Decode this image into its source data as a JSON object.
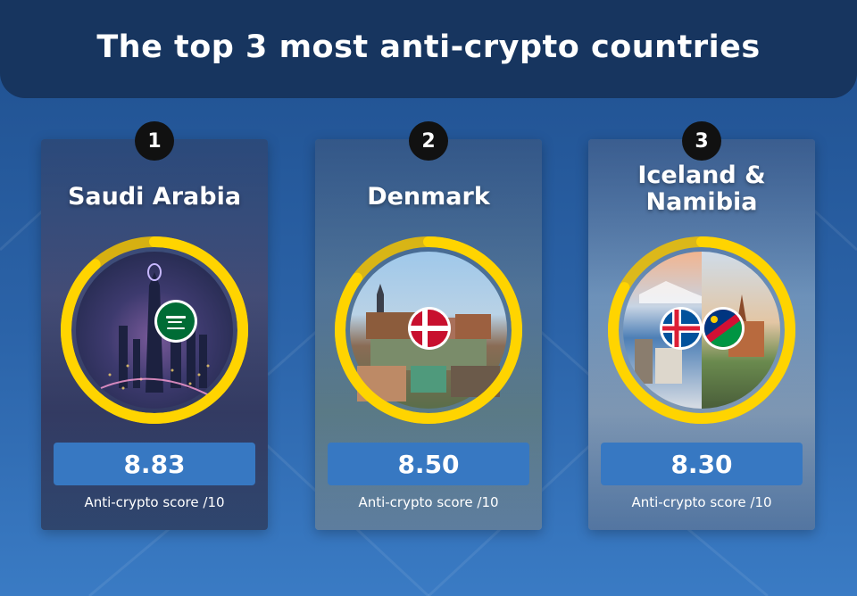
{
  "title": "The top 3 most anti-crypto countries",
  "colors": {
    "ring": "#ffd400",
    "ring_track": "#f2c200",
    "score_box": "#3778c2",
    "title_bar": "#17355f",
    "badge": "#111111"
  },
  "cards": [
    {
      "rank": "1",
      "country_lines": [
        "Saudi Arabia"
      ],
      "score": "8.83",
      "score_label": "Anti-crypto score /10",
      "score_value": 8.83,
      "flag_icons": [
        "saudi-arabia-flag-icon"
      ]
    },
    {
      "rank": "2",
      "country_lines": [
        "Denmark"
      ],
      "score": "8.50",
      "score_label": "Anti-crypto score /10",
      "score_value": 8.5,
      "flag_icons": [
        "denmark-flag-icon"
      ]
    },
    {
      "rank": "3",
      "country_lines": [
        "Iceland &",
        "Namibia"
      ],
      "score": "8.30",
      "score_label": "Anti-crypto score /10",
      "score_value": 8.3,
      "flag_icons": [
        "iceland-flag-icon",
        "namibia-flag-icon"
      ]
    }
  ]
}
